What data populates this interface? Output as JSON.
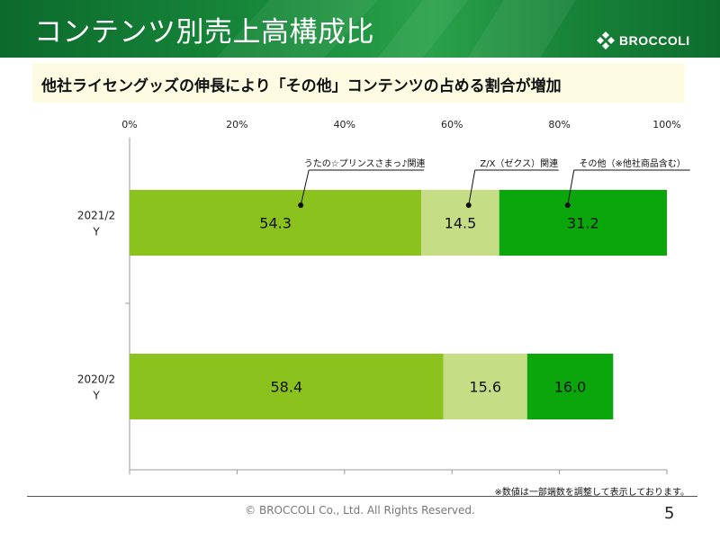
{
  "header": {
    "title": "コンテンツ別売上高構成比",
    "logo_text": "BROCCOLI"
  },
  "subtitle": "他社ライセングッズの伸長により「その他」コンテンツの占める割合が増加",
  "colors": {
    "series1": "#8cc21d",
    "series2": "#c5de85",
    "series3": "#0aa60c"
  },
  "chart_data": {
    "type": "bar",
    "orientation": "horizontal",
    "stacked": true,
    "categories": [
      "2021/2 Y",
      "2020/2 Y"
    ],
    "category_lines": [
      [
        "2021/2",
        "Y"
      ],
      [
        "2020/2",
        "Y"
      ]
    ],
    "series": [
      {
        "name": "うたの☆プリンスさまっ♪関連",
        "values": [
          54.3,
          58.4
        ],
        "color": "#8cc21d"
      },
      {
        "name": "Z/X（ゼクス）関連",
        "values": [
          14.5,
          15.6
        ],
        "color": "#c5de85"
      },
      {
        "name": "その他（※他社商品含む）",
        "values": [
          31.2,
          16.0
        ],
        "color": "#0aa60c"
      }
    ],
    "xlim": [
      0,
      100
    ],
    "x_ticks": [
      "0%",
      "20%",
      "40%",
      "60%",
      "80%",
      "100%"
    ],
    "title": "",
    "xlabel": "",
    "ylabel": "",
    "legend": "callouts-above-top-bar",
    "grid": false
  },
  "footer": {
    "note": "※数値は一部端数を調整して表示しております。",
    "copyright": "© BROCCOLI Co., Ltd. All Rights Reserved.",
    "page": "5"
  }
}
